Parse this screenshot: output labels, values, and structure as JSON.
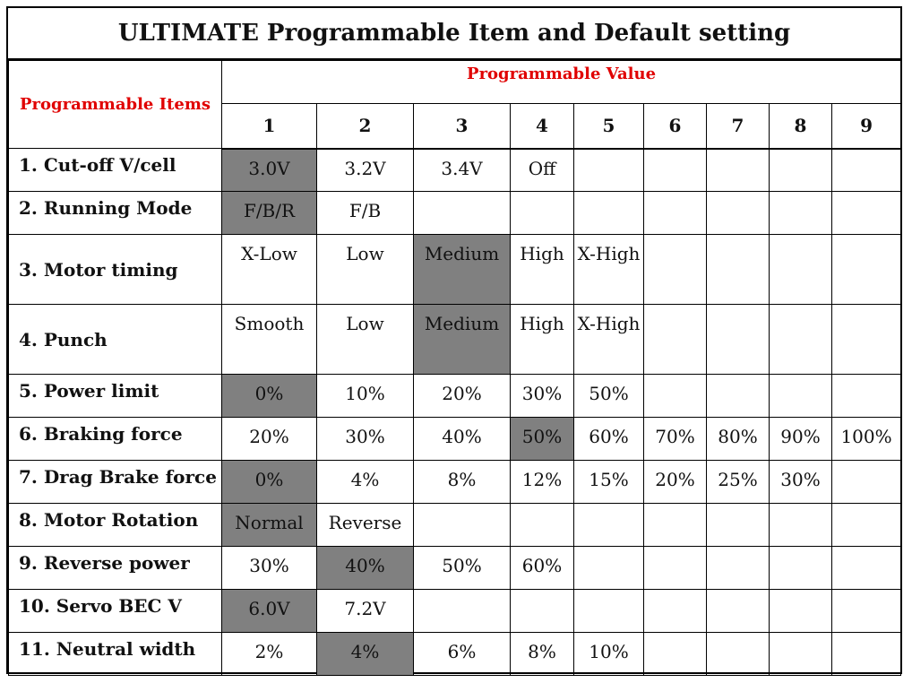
{
  "title": "ULTIMATE Programmable Item and Default setting",
  "header": {
    "items_label": "Programmable Items",
    "value_label": "Programmable Value",
    "columns": [
      "1",
      "2",
      "3",
      "4",
      "5",
      "6",
      "7",
      "8",
      "9"
    ]
  },
  "colors": {
    "header_text": "#e00000",
    "default_highlight": "#808080"
  },
  "rows": [
    {
      "label": "1. Cut-off V/cell",
      "values": [
        "3.0V",
        "3.2V",
        "3.4V",
        "Off",
        "",
        "",
        "",
        "",
        ""
      ],
      "default_index": 0
    },
    {
      "label": "2. Running Mode",
      "values": [
        "F/B/R",
        "F/B",
        "",
        "",
        "",
        "",
        "",
        "",
        ""
      ],
      "default_index": 0
    },
    {
      "label": "3. Motor timing",
      "values": [
        "X-Low",
        "Low",
        "Medium",
        "High",
        "X-High",
        "",
        "",
        "",
        ""
      ],
      "default_index": 2
    },
    {
      "label": "4. Punch",
      "values": [
        "Smooth",
        "Low",
        "Medium",
        "High",
        "X-High",
        "",
        "",
        "",
        ""
      ],
      "default_index": 2
    },
    {
      "label": "5. Power limit",
      "values": [
        "0%",
        "10%",
        "20%",
        "30%",
        "50%",
        "",
        "",
        "",
        ""
      ],
      "default_index": 0
    },
    {
      "label": "6. Braking force",
      "values": [
        "20%",
        "30%",
        "40%",
        "50%",
        "60%",
        "70%",
        "80%",
        "90%",
        "100%"
      ],
      "default_index": 3
    },
    {
      "label": "7. Drag Brake force",
      "values": [
        "0%",
        "4%",
        "8%",
        "12%",
        "15%",
        "20%",
        "25%",
        "30%",
        ""
      ],
      "default_index": 0
    },
    {
      "label": "8. Motor Rotation",
      "values": [
        "Normal",
        "Reverse",
        "",
        "",
        "",
        "",
        "",
        "",
        ""
      ],
      "default_index": 0
    },
    {
      "label": "9. Reverse power",
      "values": [
        "30%",
        "40%",
        "50%",
        "60%",
        "",
        "",
        "",
        "",
        ""
      ],
      "default_index": 1
    },
    {
      "label": "10. Servo BEC V",
      "values": [
        "6.0V",
        "7.2V",
        "",
        "",
        "",
        "",
        "",
        "",
        ""
      ],
      "default_index": 0
    },
    {
      "label": "11. Neutral width",
      "values": [
        "2%",
        "4%",
        "6%",
        "8%",
        "10%",
        "",
        "",
        "",
        ""
      ],
      "default_index": 1
    }
  ]
}
